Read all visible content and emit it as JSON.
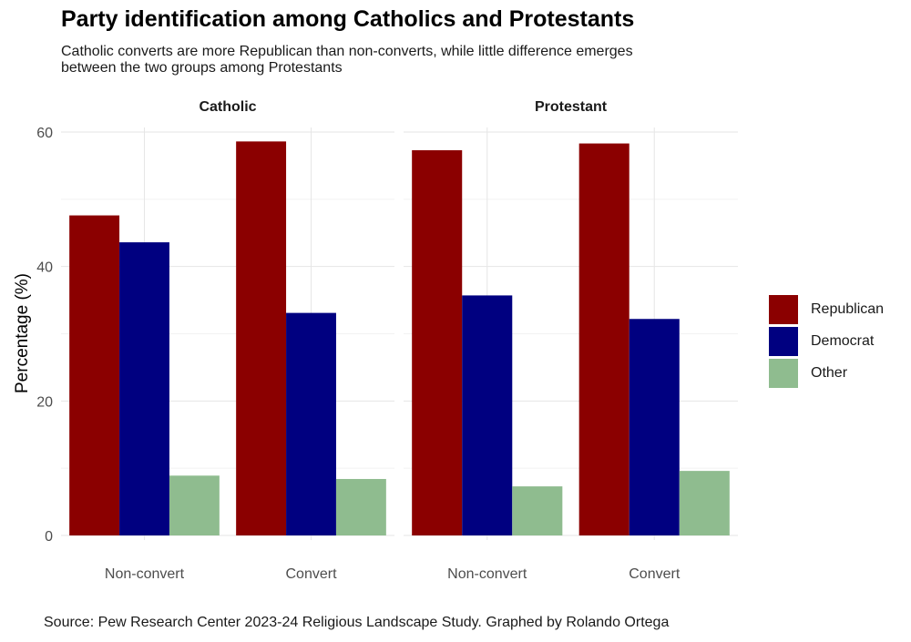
{
  "title": "Party identification among Catholics and Protestants",
  "subtitle": "Catholic converts are more Republican than non-converts, while little difference emerges between the two groups among Protestants",
  "caption": "Source: Pew Research Center 2023-24 Religious Landscape Study. Graphed by Rolando Ortega",
  "colors": {
    "Republican": "#8b0000",
    "Democrat": "#000080",
    "Other": "#8fbc8f"
  },
  "chart_data": {
    "type": "bar",
    "ylabel": "Percentage (%)",
    "xlabel": "",
    "ylim": [
      0,
      60
    ],
    "yticks": [
      0,
      20,
      40,
      60
    ],
    "grid": true,
    "legend_position": "right",
    "facets": [
      {
        "name": "Catholic",
        "categories": [
          "Non-convert",
          "Convert"
        ],
        "series": [
          {
            "name": "Republican",
            "values": [
              47.6,
              58.6
            ]
          },
          {
            "name": "Democrat",
            "values": [
              43.6,
              33.1
            ]
          },
          {
            "name": "Other",
            "values": [
              8.9,
              8.4
            ]
          }
        ]
      },
      {
        "name": "Protestant",
        "categories": [
          "Non-convert",
          "Convert"
        ],
        "series": [
          {
            "name": "Republican",
            "values": [
              57.3,
              58.3
            ]
          },
          {
            "name": "Democrat",
            "values": [
              35.7,
              32.2
            ]
          },
          {
            "name": "Other",
            "values": [
              7.3,
              9.6
            ]
          }
        ]
      }
    ]
  }
}
